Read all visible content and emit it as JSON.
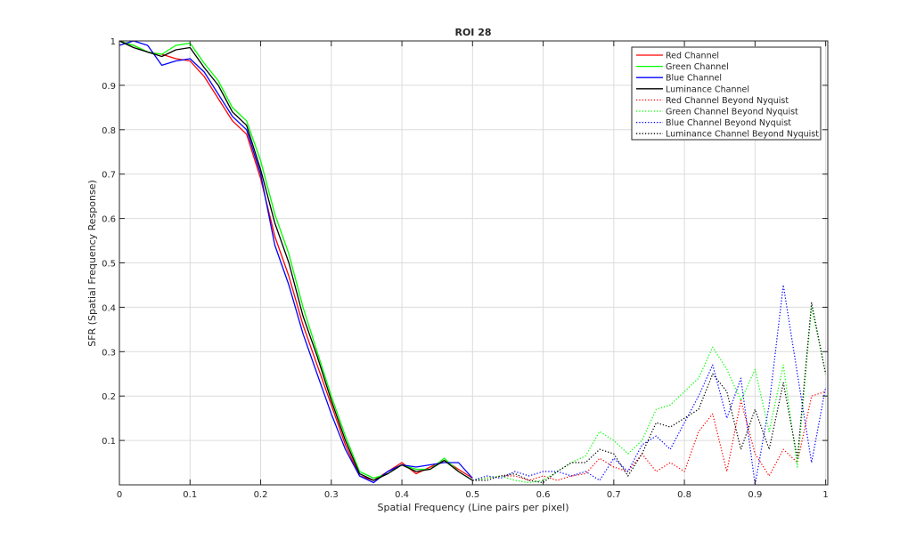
{
  "chart_data": {
    "type": "line",
    "title": "ROI 28",
    "xlabel": "Spatial Frequency (Line pairs per pixel)",
    "ylabel": "SFR (Spatial Frequency Response)",
    "xlim": [
      0,
      1.003
    ],
    "ylim": [
      0,
      1
    ],
    "xticks": [
      0,
      0.1,
      0.2,
      0.3,
      0.4,
      0.5,
      0.6,
      0.7,
      0.8,
      0.9,
      1
    ],
    "xtick_labels": [
      "0",
      "0.1",
      "0.2",
      "0.3",
      "0.4",
      "0.5",
      "0.6",
      "0.7",
      "0.8",
      "0.9",
      "1"
    ],
    "yticks": [
      0.1,
      0.2,
      0.3,
      0.4,
      0.5,
      0.6,
      0.7,
      0.8,
      0.9,
      1
    ],
    "ytick_labels": [
      "0.1",
      "0.2",
      "0.3",
      "0.4",
      "0.5",
      "0.6",
      "0.7",
      "0.8",
      "0.9",
      "1"
    ],
    "grid": true,
    "legend_position": "top-right",
    "x_solid": [
      0,
      0.02,
      0.04,
      0.06,
      0.08,
      0.1,
      0.12,
      0.14,
      0.16,
      0.18,
      0.2,
      0.22,
      0.24,
      0.26,
      0.28,
      0.3,
      0.32,
      0.34,
      0.36,
      0.38,
      0.4,
      0.42,
      0.44,
      0.46,
      0.48,
      0.5
    ],
    "x_beyond": [
      0.5,
      0.52,
      0.54,
      0.56,
      0.58,
      0.6,
      0.62,
      0.64,
      0.66,
      0.68,
      0.7,
      0.72,
      0.74,
      0.76,
      0.78,
      0.8,
      0.82,
      0.84,
      0.86,
      0.88,
      0.9,
      0.92,
      0.94,
      0.96,
      0.98,
      1.0
    ],
    "series": [
      {
        "name": "Red Channel",
        "color": "#ff0000",
        "style": "solid",
        "x_key": "x_solid",
        "values": [
          1.0,
          0.99,
          0.975,
          0.97,
          0.96,
          0.955,
          0.92,
          0.87,
          0.82,
          0.79,
          0.69,
          0.56,
          0.47,
          0.36,
          0.27,
          0.18,
          0.09,
          0.02,
          0.01,
          0.03,
          0.05,
          0.025,
          0.04,
          0.055,
          0.035,
          0.015
        ]
      },
      {
        "name": "Green Channel",
        "color": "#00ff00",
        "style": "solid",
        "x_key": "x_solid",
        "values": [
          1.0,
          0.99,
          0.975,
          0.97,
          0.99,
          0.995,
          0.95,
          0.91,
          0.85,
          0.82,
          0.73,
          0.61,
          0.52,
          0.4,
          0.3,
          0.2,
          0.11,
          0.03,
          0.015,
          0.025,
          0.045,
          0.035,
          0.035,
          0.06,
          0.03,
          0.01
        ]
      },
      {
        "name": "Blue Channel",
        "color": "#0000ff",
        "style": "solid",
        "x_key": "x_solid",
        "values": [
          0.99,
          1.0,
          0.99,
          0.945,
          0.955,
          0.96,
          0.93,
          0.88,
          0.83,
          0.8,
          0.7,
          0.54,
          0.45,
          0.34,
          0.25,
          0.16,
          0.08,
          0.02,
          0.005,
          0.03,
          0.045,
          0.04,
          0.045,
          0.05,
          0.05,
          0.015
        ]
      },
      {
        "name": "Luminance Channel",
        "color": "#000000",
        "style": "solid",
        "x_key": "x_solid",
        "values": [
          1.0,
          0.985,
          0.975,
          0.965,
          0.98,
          0.985,
          0.94,
          0.9,
          0.84,
          0.81,
          0.71,
          0.59,
          0.5,
          0.38,
          0.29,
          0.19,
          0.1,
          0.025,
          0.01,
          0.025,
          0.045,
          0.03,
          0.035,
          0.055,
          0.03,
          0.01
        ]
      },
      {
        "name": "Red Channel Beyond Nyquist",
        "color": "#ff0000",
        "style": "dotted",
        "x_key": "x_beyond",
        "values": [
          0.01,
          0.015,
          0.02,
          0.02,
          0.01,
          0.02,
          0.01,
          0.02,
          0.025,
          0.06,
          0.04,
          0.03,
          0.07,
          0.03,
          0.05,
          0.03,
          0.12,
          0.16,
          0.03,
          0.19,
          0.07,
          0.02,
          0.08,
          0.05,
          0.2,
          0.21
        ]
      },
      {
        "name": "Green Channel Beyond Nyquist",
        "color": "#00ff00",
        "style": "dotted",
        "x_key": "x_beyond",
        "values": [
          0.01,
          0.015,
          0.02,
          0.01,
          0.005,
          0.01,
          0.03,
          0.05,
          0.065,
          0.12,
          0.1,
          0.07,
          0.1,
          0.17,
          0.18,
          0.21,
          0.24,
          0.31,
          0.26,
          0.19,
          0.26,
          0.12,
          0.27,
          0.04,
          0.4,
          0.25
        ]
      },
      {
        "name": "Blue Channel Beyond Nyquist",
        "color": "#0000ff",
        "style": "dotted",
        "x_key": "x_beyond",
        "values": [
          0.01,
          0.02,
          0.015,
          0.03,
          0.02,
          0.03,
          0.03,
          0.02,
          0.03,
          0.01,
          0.06,
          0.03,
          0.09,
          0.11,
          0.08,
          0.14,
          0.2,
          0.27,
          0.15,
          0.24,
          0.0,
          0.18,
          0.45,
          0.25,
          0.05,
          0.22
        ]
      },
      {
        "name": "Luminance Channel Beyond Nyquist",
        "color": "#000000",
        "style": "dotted",
        "x_key": "x_beyond",
        "values": [
          0.01,
          0.01,
          0.02,
          0.025,
          0.01,
          0.005,
          0.03,
          0.05,
          0.05,
          0.08,
          0.07,
          0.02,
          0.07,
          0.14,
          0.13,
          0.15,
          0.17,
          0.25,
          0.21,
          0.08,
          0.17,
          0.08,
          0.23,
          0.06,
          0.41,
          0.25
        ]
      }
    ]
  }
}
